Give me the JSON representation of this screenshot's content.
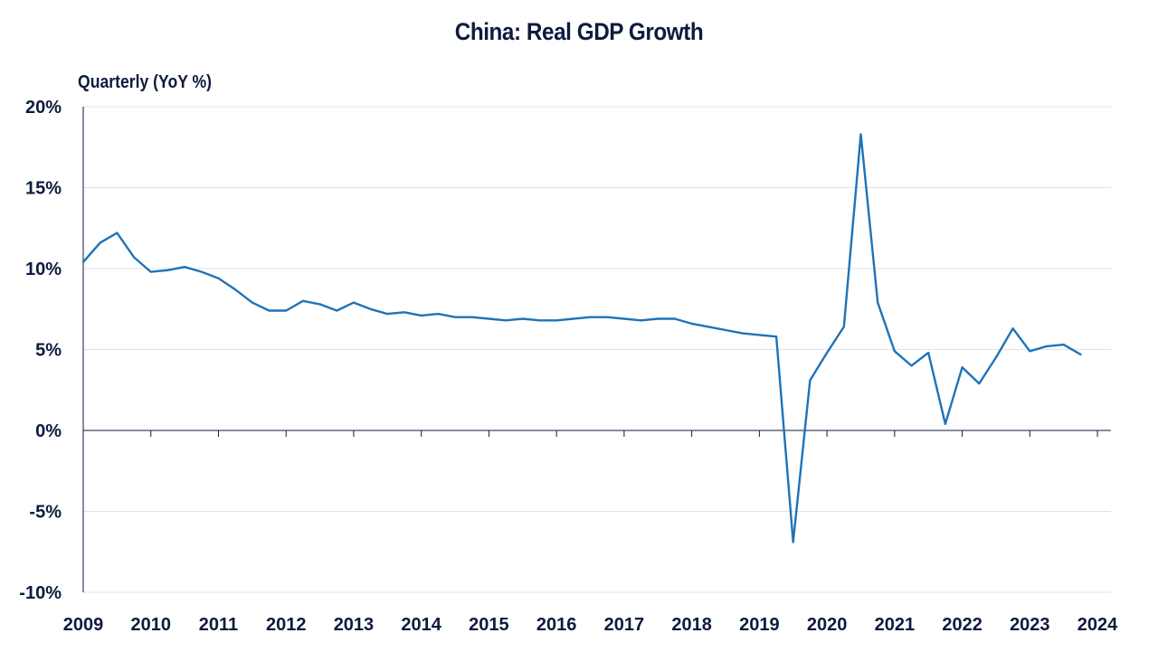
{
  "chart_data": {
    "type": "line",
    "title": "China: Real GDP Growth",
    "ylabel": "Quarterly (YoY %)",
    "xlabel": "",
    "grid": true,
    "ylim": [
      -10,
      20
    ],
    "yticks": [
      20,
      15,
      10,
      5,
      0,
      -5,
      -10
    ],
    "ytick_labels": [
      "20%",
      "15%",
      "10%",
      "5%",
      "0%",
      "-5%",
      "-10%"
    ],
    "xlim": [
      2009,
      2024.2
    ],
    "xticks": [
      2009,
      2010,
      2011,
      2012,
      2013,
      2014,
      2015,
      2016,
      2017,
      2018,
      2019,
      2020,
      2021,
      2022,
      2023,
      2024
    ],
    "xtick_labels": [
      "2009",
      "2010",
      "2011",
      "2012",
      "2013",
      "2014",
      "2015",
      "2016",
      "2017",
      "2018",
      "2019",
      "2020",
      "2021",
      "2022",
      "2023",
      "2024"
    ],
    "colors": {
      "line": "#1e73b8",
      "axis": "#0d1b3e",
      "grid": "#dde2e8"
    },
    "series": [
      {
        "x": [
          2009.0,
          2009.25,
          2009.5,
          2009.75,
          2010.0,
          2010.25,
          2010.5,
          2010.75,
          2011.0,
          2011.25,
          2011.5,
          2011.75,
          2012.0,
          2012.25,
          2012.5,
          2012.75,
          2013.0,
          2013.25,
          2013.5,
          2013.75,
          2014.0,
          2014.25,
          2014.5,
          2014.75,
          2015.0,
          2015.25,
          2015.5,
          2015.75,
          2016.0,
          2016.25,
          2016.5,
          2016.75,
          2017.0,
          2017.25,
          2017.5,
          2017.75,
          2018.0,
          2018.25,
          2018.5,
          2018.75,
          2019.0,
          2019.25,
          2019.5,
          2019.75,
          2020.0,
          2020.25,
          2020.5,
          2020.75,
          2021.0,
          2021.25,
          2021.5,
          2021.75,
          2022.0,
          2022.25,
          2022.5,
          2022.75,
          2023.0,
          2023.25,
          2023.5,
          2023.75
        ],
        "values": [
          10.4,
          11.6,
          12.2,
          10.7,
          9.8,
          9.9,
          10.1,
          9.8,
          9.4,
          8.7,
          7.9,
          7.4,
          7.4,
          8.0,
          7.8,
          7.4,
          7.9,
          7.5,
          7.2,
          7.3,
          7.1,
          7.2,
          7.0,
          7.0,
          6.9,
          6.8,
          6.9,
          6.8,
          6.8,
          6.9,
          7.0,
          7.0,
          6.9,
          6.8,
          6.9,
          6.9,
          6.6,
          6.4,
          6.2,
          6.0,
          5.9,
          5.8,
          -6.9,
          3.1,
          4.8,
          6.4,
          18.3,
          7.9,
          4.9,
          4.0,
          4.8,
          0.4,
          3.9,
          2.9,
          4.5,
          6.3,
          4.9,
          5.2,
          5.3,
          4.7
        ]
      }
    ]
  }
}
